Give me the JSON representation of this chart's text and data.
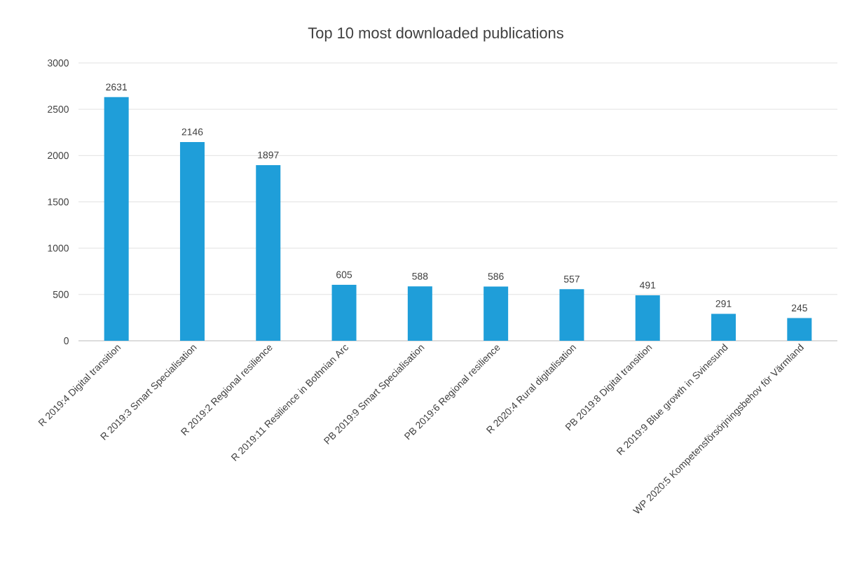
{
  "chart_data": {
    "type": "bar",
    "title": "Top 10 most downloaded publications",
    "categories": [
      "R 2019:4 Digital transition",
      "R 2019:3 Smart Specialisation",
      "R 2019:2 Regional resilience",
      "R 2019:11 Resilience in Bothnian Arc",
      "PB 2019:9 Smart Specialisation",
      "PB 2019:6 Regional resilience",
      "R 2020:4 Rural digitalisation",
      "PB 2019:8 Digital transition",
      "R 2019:9 Blue growth in Svinesund",
      "WP 2020:5 Kompetensförsörjningsbehov för Värmland"
    ],
    "values": [
      2631,
      2146,
      1897,
      605,
      588,
      586,
      557,
      491,
      291,
      245
    ],
    "color": "#1f9ed9",
    "ylim": [
      0,
      3000
    ],
    "yticks": [
      0,
      500,
      1000,
      1500,
      2000,
      2500,
      3000
    ],
    "grid": "y",
    "data_labels": true
  }
}
